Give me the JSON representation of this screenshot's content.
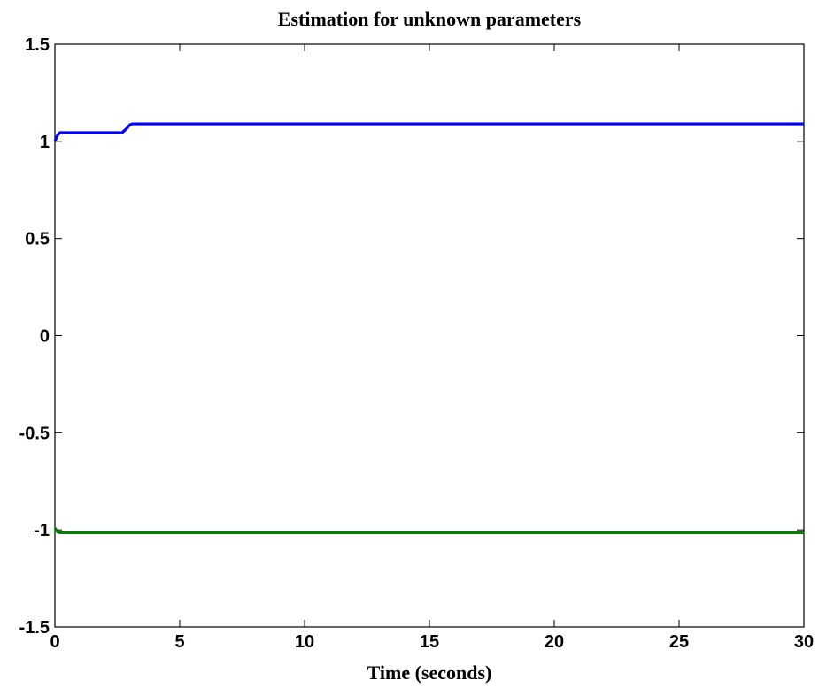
{
  "chart_data": {
    "type": "line",
    "title": "Estimation for unknown parameters",
    "xlabel": "Time (seconds)",
    "ylabel": "",
    "xlim": [
      0,
      30
    ],
    "ylim": [
      -1.5,
      1.5
    ],
    "xticks": [
      0,
      5,
      10,
      15,
      20,
      25,
      30
    ],
    "xtick_labels": [
      "0",
      "5",
      "10",
      "15",
      "20",
      "25",
      "30"
    ],
    "yticks": [
      1.5,
      1,
      0.5,
      0,
      -0.5,
      -1,
      -1.5
    ],
    "ytick_labels": [
      "1.5",
      "1",
      "0.5",
      "0",
      "-0.5",
      "-1",
      "-1.5"
    ],
    "grid": false,
    "legend": "none",
    "series": [
      {
        "color": "#0000ff",
        "x": [
          0,
          0.1,
          0.2,
          0.3,
          1.0,
          2.0,
          2.7,
          2.9,
          3.0,
          3.1,
          5,
          10,
          15,
          20,
          25,
          30
        ],
        "y": [
          1.0,
          1.03,
          1.045,
          1.045,
          1.045,
          1.045,
          1.045,
          1.07,
          1.085,
          1.09,
          1.09,
          1.09,
          1.09,
          1.09,
          1.09,
          1.09
        ]
      },
      {
        "color": "#007f00",
        "x": [
          0,
          0.05,
          0.1,
          0.2,
          0.5,
          1,
          5,
          10,
          15,
          20,
          25,
          30
        ],
        "y": [
          -0.99,
          -1.0,
          -1.01,
          -1.015,
          -1.015,
          -1.015,
          -1.015,
          -1.015,
          -1.015,
          -1.015,
          -1.015,
          -1.015
        ]
      }
    ]
  }
}
